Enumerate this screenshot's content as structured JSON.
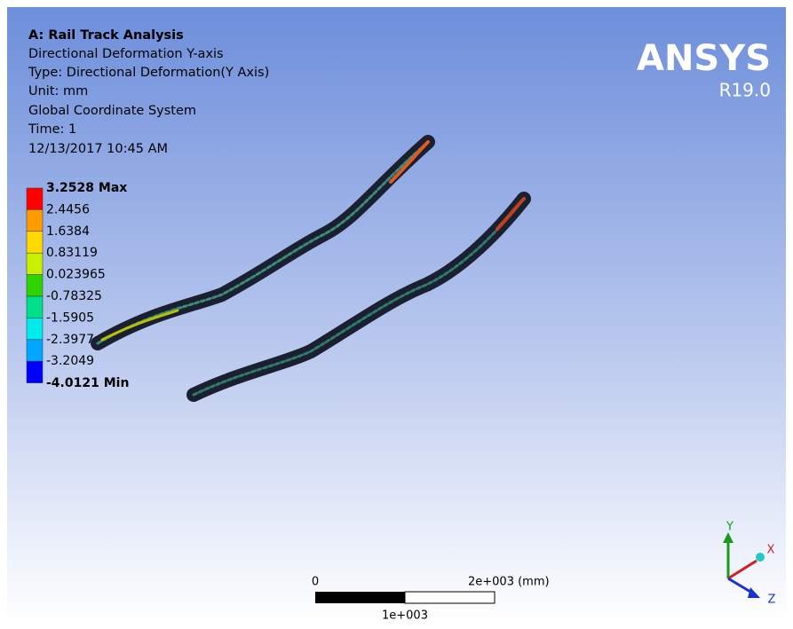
{
  "header": {
    "title": "A: Rail  Track Analysis",
    "lines": [
      "Directional Deformation Y-axis",
      "Type: Directional Deformation(Y Axis)",
      "Unit: mm",
      "Global Coordinate System",
      "Time: 1",
      "12/13/2017 10:45 AM"
    ]
  },
  "legend": {
    "labels": [
      "3.2528 Max",
      "2.4456",
      "1.6384",
      "0.83119",
      "0.023965",
      "-0.78325",
      "-1.5905",
      "-2.3977",
      "-3.2049",
      "-4.0121 Min"
    ]
  },
  "logo": {
    "brand": "ANSYS",
    "version": "R19.0"
  },
  "scale_bar": {
    "start": "0",
    "end": "2e+003 (mm)",
    "middle": "1e+003"
  },
  "triad": {
    "y": "Y",
    "x": "X",
    "z": "Z"
  }
}
